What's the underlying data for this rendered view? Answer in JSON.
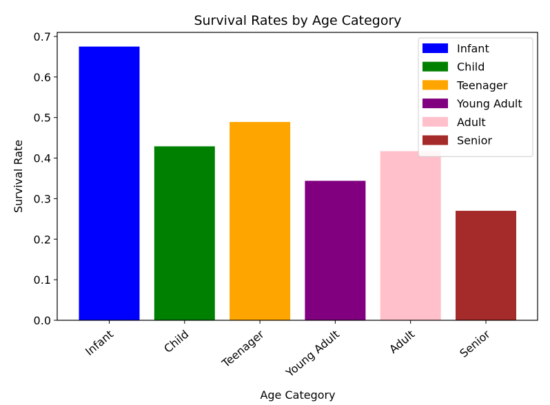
{
  "chart_data": {
    "type": "bar",
    "title": "Survival Rates by Age Category",
    "xlabel": "Age Category",
    "ylabel": "Survival Rate",
    "categories": [
      "Infant",
      "Child",
      "Teenager",
      "Young Adult",
      "Adult",
      "Senior"
    ],
    "values": [
      0.675,
      0.429,
      0.489,
      0.344,
      0.417,
      0.27
    ],
    "colors": [
      "#0000ff",
      "#008000",
      "#ffa500",
      "#800080",
      "#ffc0cb",
      "#a52a2a"
    ],
    "ylim": [
      0,
      0.71
    ],
    "yticks": [
      0.0,
      0.1,
      0.2,
      0.3,
      0.4,
      0.5,
      0.6,
      0.7
    ],
    "ytick_labels": [
      "0.0",
      "0.1",
      "0.2",
      "0.3",
      "0.4",
      "0.5",
      "0.6",
      "0.7"
    ],
    "legend": {
      "placement": "top-right",
      "entries": [
        "Infant",
        "Child",
        "Teenager",
        "Young Adult",
        "Adult",
        "Senior"
      ]
    },
    "grid": false
  }
}
